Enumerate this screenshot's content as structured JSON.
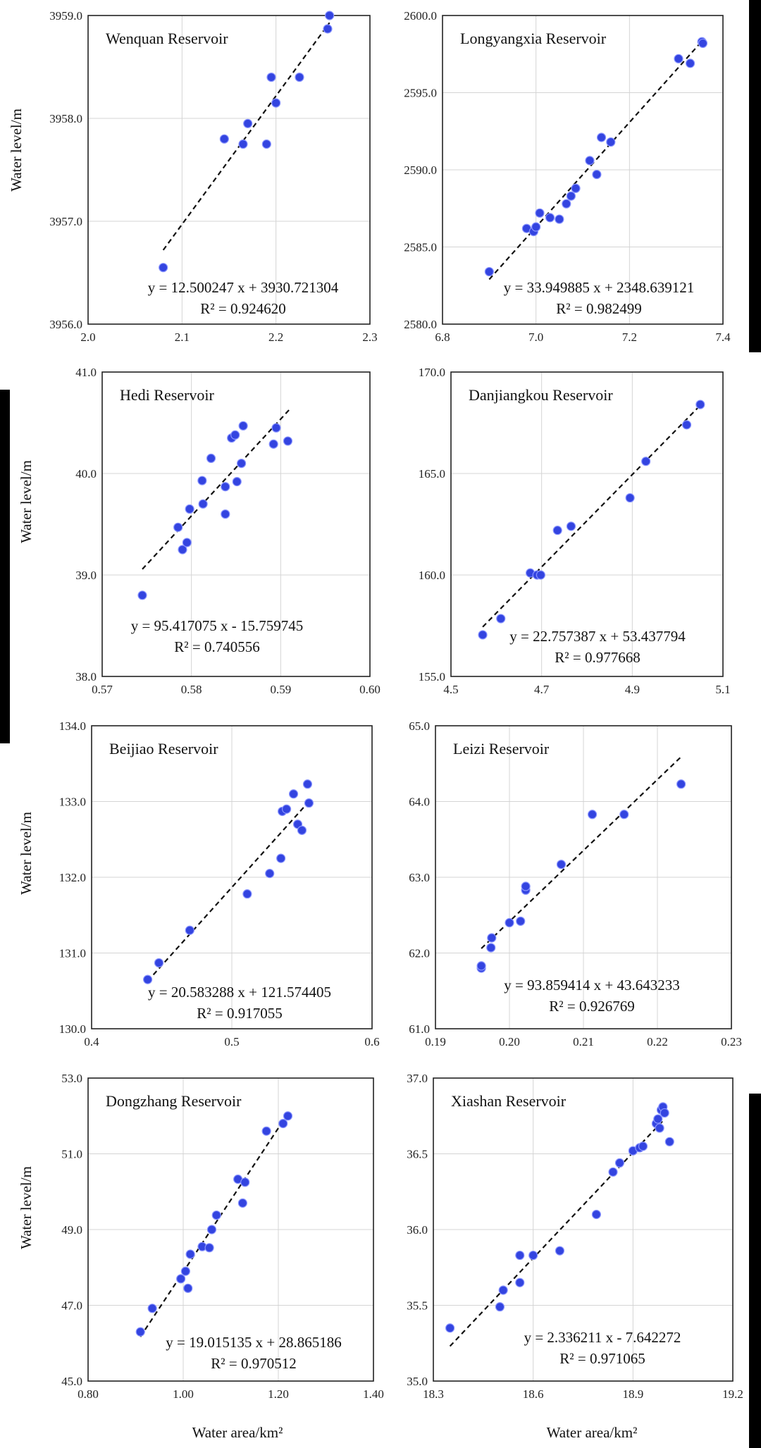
{
  "figure": {
    "y_axis_label": "Water level/m",
    "x_axis_label": "Water area/km²"
  },
  "chart_data": [
    {
      "type": "scatter",
      "title": "Wenquan Reservoir",
      "xlabel": "",
      "ylabel": "Water level/m",
      "xlim": [
        2.0,
        2.3
      ],
      "ylim": [
        3956.0,
        3959.0
      ],
      "xticks": [
        "2.0",
        "2.1",
        "2.2",
        "2.3"
      ],
      "yticks": [
        "3956.0",
        "3957.0",
        "3958.0",
        "3959.0"
      ],
      "x": [
        2.08,
        2.145,
        2.165,
        2.17,
        2.19,
        2.195,
        2.2,
        2.225,
        2.255,
        2.257
      ],
      "y": [
        3956.55,
        3957.8,
        3957.75,
        3957.95,
        3957.75,
        3958.4,
        3958.15,
        3958.4,
        3958.87,
        3959.0
      ],
      "fit": [
        [
          2.08,
          3956.72
        ],
        [
          2.257,
          3958.93
        ]
      ],
      "equation": "y = 12.500247 x + 3930.721304",
      "r2": "R² = 0.924620"
    },
    {
      "type": "scatter",
      "title": "Longyangxia Reservoir",
      "xlabel": "",
      "ylabel": "",
      "xlim": [
        6.8,
        7.4
      ],
      "ylim": [
        2580.0,
        2600.0
      ],
      "xticks": [
        "6.8",
        "7.0",
        "7.2",
        "7.4"
      ],
      "yticks": [
        "2580.0",
        "2585.0",
        "2590.0",
        "2595.0",
        "2600.0"
      ],
      "x": [
        6.9,
        6.98,
        6.995,
        7.0,
        7.008,
        7.03,
        7.05,
        7.065,
        7.075,
        7.085,
        7.115,
        7.13,
        7.14,
        7.16,
        7.305,
        7.33,
        7.355,
        7.357
      ],
      "y": [
        2583.4,
        2586.2,
        2586.0,
        2586.3,
        2587.2,
        2586.9,
        2586.8,
        2587.8,
        2588.3,
        2588.8,
        2590.6,
        2589.7,
        2592.1,
        2591.8,
        2597.2,
        2596.9,
        2598.3,
        2598.2
      ],
      "fit": [
        [
          6.9,
          2582.9
        ],
        [
          7.357,
          2598.4
        ]
      ],
      "equation": "y = 33.949885 x + 2348.639121",
      "r2": "R² = 0.982499"
    },
    {
      "type": "scatter",
      "title": "Hedi Reservoir",
      "xlabel": "",
      "ylabel": "Water level/m",
      "xlim": [
        0.57,
        0.6
      ],
      "ylim": [
        38.0,
        41.0
      ],
      "xticks": [
        "0.57",
        "0.58",
        "0.59",
        "0.60"
      ],
      "yticks": [
        "38.0",
        "39.0",
        "40.0",
        "41.0"
      ],
      "x": [
        0.5745,
        0.5785,
        0.579,
        0.5795,
        0.5798,
        0.5812,
        0.5813,
        0.5822,
        0.5838,
        0.5838,
        0.5845,
        0.5849,
        0.5851,
        0.5856,
        0.5858,
        0.5892,
        0.5895,
        0.5908
      ],
      "y": [
        38.8,
        39.47,
        39.25,
        39.32,
        39.65,
        39.93,
        39.7,
        40.15,
        39.6,
        39.87,
        40.35,
        40.38,
        39.92,
        40.1,
        40.47,
        40.29,
        40.45,
        40.32
      ],
      "fit": [
        [
          0.5745,
          39.057
        ],
        [
          0.591,
          40.632
        ]
      ],
      "equation": "y = 95.417075 x - 15.759745",
      "r2": "R² = 0.740556"
    },
    {
      "type": "scatter",
      "title": "Danjiangkou Reservoir",
      "xlabel": "",
      "ylabel": "",
      "xlim": [
        4.5,
        5.1
      ],
      "ylim": [
        155.0,
        170.0
      ],
      "xticks": [
        "4.5",
        "4.7",
        "4.9",
        "5.1"
      ],
      "yticks": [
        "155.0",
        "160.0",
        "165.0",
        "170.0"
      ],
      "x": [
        4.57,
        4.61,
        4.675,
        4.69,
        4.698,
        4.735,
        4.765,
        4.895,
        4.93,
        5.02,
        5.05
      ],
      "y": [
        157.05,
        157.85,
        160.1,
        160.0,
        160.0,
        162.2,
        162.4,
        163.8,
        165.6,
        167.4,
        168.4
      ],
      "fit": [
        [
          4.57,
          157.44
        ],
        [
          5.05,
          168.36
        ]
      ],
      "equation": "y = 22.757387 x + 53.437794",
      "r2": "R² = 0.977668"
    },
    {
      "type": "scatter",
      "title": "Beijiao Reservoir",
      "xlabel": "",
      "ylabel": "Water level/m",
      "xlim": [
        0.4,
        0.6
      ],
      "ylim": [
        130.0,
        134.0
      ],
      "xticks": [
        "0.4",
        "0.5",
        "0.6"
      ],
      "yticks": [
        "130.0",
        "131.0",
        "132.0",
        "133.0",
        "134.0"
      ],
      "x": [
        0.44,
        0.448,
        0.47,
        0.511,
        0.527,
        0.535,
        0.536,
        0.539,
        0.544,
        0.547,
        0.55,
        0.554,
        0.555
      ],
      "y": [
        130.65,
        130.87,
        131.3,
        131.78,
        132.05,
        132.25,
        132.87,
        132.9,
        133.1,
        132.7,
        132.62,
        133.23,
        132.98
      ],
      "fit": [
        [
          0.44,
          130.63
        ],
        [
          0.555,
          133.0
        ]
      ],
      "equation": "y = 20.583288 x + 121.574405",
      "r2": "R² = 0.917055"
    },
    {
      "type": "scatter",
      "title": "Leizi Reservoir",
      "xlabel": "",
      "ylabel": "",
      "xlim": [
        0.19,
        0.23
      ],
      "ylim": [
        61.0,
        65.0
      ],
      "xticks": [
        "0.19",
        "0.20",
        "0.21",
        "0.22",
        "0.23"
      ],
      "yticks": [
        "61.0",
        "62.0",
        "63.0",
        "64.0",
        "65.0"
      ],
      "x": [
        0.1962,
        0.1962,
        0.1975,
        0.1976,
        0.2,
        0.2015,
        0.2022,
        0.2022,
        0.207,
        0.2112,
        0.2155,
        0.2232
      ],
      "y": [
        61.8,
        61.83,
        62.07,
        62.2,
        62.4,
        62.42,
        62.83,
        62.88,
        63.17,
        63.83,
        63.83,
        64.23
      ],
      "fit": [
        [
          0.1962,
          62.06
        ],
        [
          0.2232,
          64.59
        ]
      ],
      "equation": "y = 93.859414 x + 43.643233",
      "r2": "R² = 0.926769"
    },
    {
      "type": "scatter",
      "title": "Dongzhang Reservoir",
      "xlabel": "Water area/km²",
      "ylabel": "Water level/m",
      "xlim": [
        0.8,
        1.4
      ],
      "ylim": [
        45.0,
        53.0
      ],
      "xticks": [
        "0.80",
        "1.00",
        "1.20",
        "1.40"
      ],
      "yticks": [
        "45.0",
        "47.0",
        "49.0",
        "51.0",
        "53.0"
      ],
      "x": [
        0.91,
        0.935,
        0.995,
        1.005,
        1.01,
        1.015,
        1.04,
        1.055,
        1.06,
        1.07,
        1.115,
        1.125,
        1.13,
        1.175,
        1.21,
        1.22
      ],
      "y": [
        46.3,
        46.92,
        47.7,
        47.9,
        47.45,
        48.35,
        48.55,
        48.52,
        49.0,
        49.38,
        50.33,
        49.7,
        50.25,
        51.6,
        51.8,
        52.0
      ],
      "fit": [
        [
          0.91,
          46.17
        ],
        [
          1.22,
          52.06
        ]
      ],
      "equation": "y = 19.015135 x + 28.865186",
      "r2": "R² = 0.970512"
    },
    {
      "type": "scatter",
      "title": "Xiashan Reservoir",
      "xlabel": "Water area/km²",
      "ylabel": "",
      "xlim": [
        18.3,
        19.2
      ],
      "ylim": [
        35.0,
        37.0
      ],
      "xticks": [
        "18.3",
        "18.6",
        "18.9",
        "19.2"
      ],
      "yticks": [
        "35.0",
        "35.5",
        "36.0",
        "36.5",
        "37.0"
      ],
      "x": [
        18.35,
        18.5,
        18.51,
        18.56,
        18.56,
        18.6,
        18.68,
        18.79,
        18.84,
        18.86,
        18.9,
        18.92,
        18.93,
        18.97,
        18.975,
        18.98,
        18.985,
        18.99,
        18.995,
        19.01
      ],
      "y": [
        35.35,
        35.49,
        35.6,
        35.65,
        35.83,
        35.83,
        35.86,
        36.1,
        36.38,
        36.44,
        36.52,
        36.54,
        36.55,
        36.7,
        36.73,
        36.67,
        36.79,
        36.81,
        36.77,
        36.58
      ],
      "fit": [
        [
          18.35,
          35.23
        ],
        [
          18.995,
          36.73
        ]
      ],
      "equation": "y = 2.336211 x - 7.642272",
      "r2": "R² = 0.971065"
    }
  ]
}
